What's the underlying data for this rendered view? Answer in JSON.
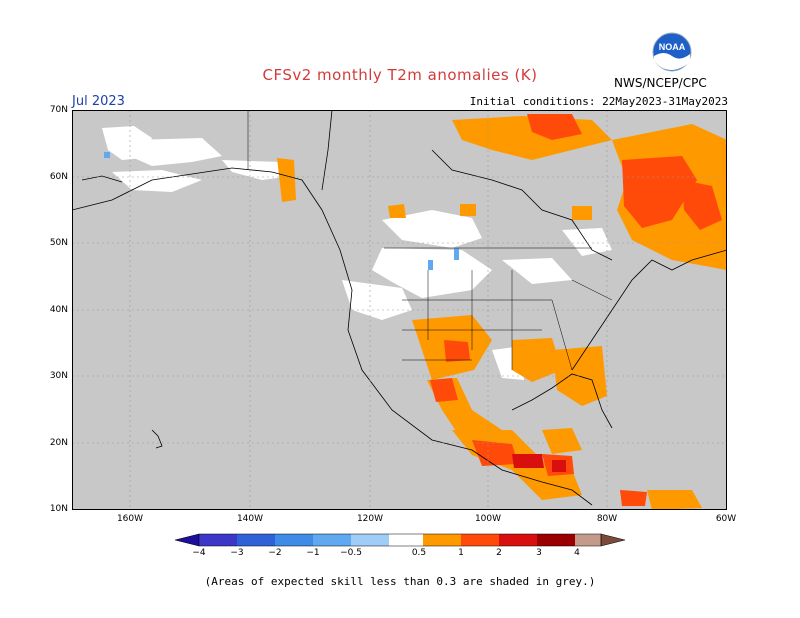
{
  "title": "CFSv2 monthly T2m anomalies (K)",
  "valid_month": "Jul 2023",
  "initial_conditions": "Initial conditions: 22May2023-31May2023",
  "organization": "NWS/NCEP/CPC",
  "logo_text": "NOAA",
  "latitude_labels": [
    "70N",
    "60N",
    "50N",
    "40N",
    "30N",
    "20N",
    "10N"
  ],
  "longitude_labels": [
    "160W",
    "140W",
    "120W",
    "100W",
    "80W",
    "60W"
  ],
  "colorbar": {
    "labels": [
      "−4",
      "−3",
      "−2",
      "−1",
      "−0.5",
      "0.5",
      "1",
      "2",
      "3",
      "4"
    ],
    "colors": [
      "#1c0f9a",
      "#3d37c8",
      "#2e62d6",
      "#3e8ce6",
      "#60a8f0",
      "#9fcdf6",
      "#ffffff",
      "#ff9900",
      "#ff4a0a",
      "#d90f0f",
      "#9b0000",
      "#c49a8a",
      "#7a4a3a"
    ]
  },
  "grey_mask_color": "#c8c8c8",
  "note": "(Areas of expected skill less than 0.3 are shaded in grey.)"
}
